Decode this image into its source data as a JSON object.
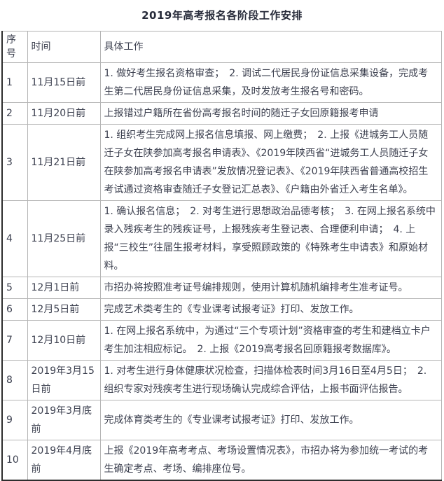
{
  "title": "2019年高考报名各阶段工作安排",
  "table": {
    "columns": [
      "序号",
      "时间",
      "具体工作"
    ],
    "rows": [
      {
        "no": "1",
        "time": "11月15日前",
        "work": "1. 做好考生报名资格审查；　2. 调试二代居民身份证信息采集设备，完成考生第二代居民身份证信息采集，及时发放考生报名号和密码。"
      },
      {
        "no": "2",
        "time": "11月20日前",
        "work": "上报错过户籍所在省份高考报名时间的随迁子女回原籍报考申请"
      },
      {
        "no": "3",
        "time": "11月21日前",
        "work": "1. 组织考生完成网上报名信息填报、网上缴费；　2. 上报《进城务工人员随迁子女在陕参加高考报名申请表》、《2019年陕西省“进城务工人员随迁子女在陕参加高考报名申请表”发放情况登记表》、《2019年陕西省普通高校招生考试通过资格审查随迁子女登记汇总表》、《户籍由外省迁入考生名单》。"
      },
      {
        "no": "4",
        "time": "11月25日前",
        "work": "1. 确认报名信息；　2. 对考生进行思想政治品德考核；　3. 在网上报名系统中录入残疾考生的残疾证号，上报残疾考生登记表、合理便利申请；　4. 上报“三校生”往届生报考材料，享受照顾政策的《特殊考生申请表》和原始材料。"
      },
      {
        "no": "5",
        "time": "12月1日前",
        "work": "市招办将按照准考证号编排规则，使用计算机随机编排考生准考证号。"
      },
      {
        "no": "6",
        "time": "12月5日前",
        "work": "完成艺术类考生的《专业课考试报考证》打印、发放工作。"
      },
      {
        "no": "7",
        "time": "12月10日前",
        "work": "1. 在网上报名系统中，为通过“三个专项计划”资格审查的考生和建档立卡户考生加注相应标记。　2. 上报《2019高考报名回原籍报考数据库》。"
      },
      {
        "no": "8",
        "time": "2019年3月15日前",
        "work": "1. 对考生进行身体健康状况检查，扫描体检表时间3月16日至4月5日；　2. 组织专家对残疾考生进行现场确认完成综合评估，上报书面评估报告。"
      },
      {
        "no": "9",
        "time": "2019年3月底前",
        "work": "完成体育类考生的《专业课考试报考证》打印、发放工作。"
      },
      {
        "no": "10",
        "time": "2019年4月底前",
        "work": "上报《2019年高考考点、考场设置情况表》，市招办将为参加统一考试的考生确定考点、考场、编排座位号。"
      }
    ]
  },
  "colors": {
    "text": "#3d4150",
    "title_text": "#272b3a",
    "border_light": "#b5b5b5",
    "border_dark": "#2d2d2d",
    "background": "#ffffff"
  }
}
